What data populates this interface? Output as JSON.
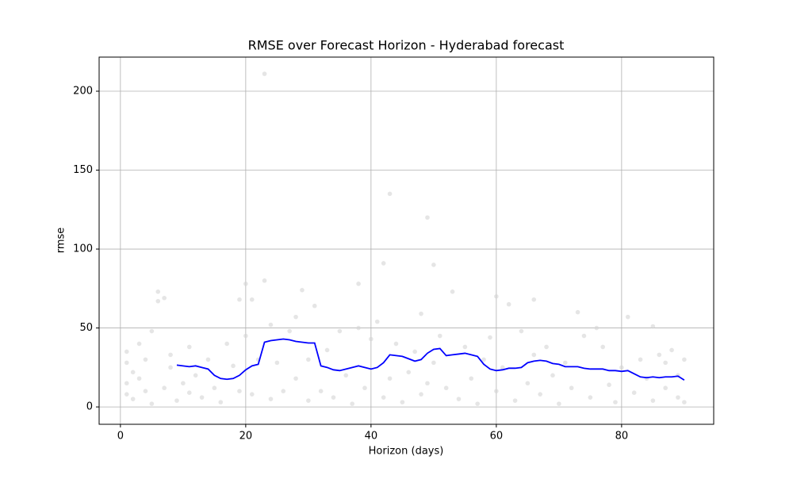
{
  "chart_data": {
    "type": "line",
    "title": "RMSE over Forecast Horizon - Hyderabad forecast",
    "x_label": "Horizon (days)",
    "y_label": "rmse",
    "xlim": [
      -3.4,
      94.7
    ],
    "ylim": [
      -11,
      221.6
    ],
    "xticks": [
      0,
      20,
      40,
      60,
      80
    ],
    "yticks": [
      0,
      50,
      100,
      150,
      200
    ],
    "grid": true,
    "series": [
      {
        "kind": "scatter",
        "color": "#d3d3d3",
        "x": [
          1,
          1,
          1,
          1,
          2,
          2,
          3,
          3,
          4,
          4,
          5,
          5,
          6,
          6,
          7,
          7,
          8,
          8,
          9,
          10,
          11,
          11,
          12,
          13,
          14,
          15,
          16,
          17,
          18,
          19,
          19,
          20,
          20,
          21,
          21,
          22,
          23,
          23,
          24,
          24,
          25,
          26,
          27,
          28,
          28,
          29,
          30,
          30,
          31,
          32,
          33,
          34,
          35,
          36,
          37,
          38,
          38,
          39,
          40,
          41,
          42,
          42,
          43,
          43,
          44,
          45,
          46,
          47,
          48,
          48,
          49,
          49,
          50,
          50,
          51,
          52,
          53,
          54,
          55,
          56,
          57,
          58,
          59,
          60,
          60,
          61,
          62,
          63,
          64,
          65,
          66,
          66,
          67,
          68,
          69,
          70,
          71,
          72,
          73,
          74,
          75,
          76,
          77,
          78,
          79,
          80,
          81,
          82,
          83,
          84,
          85,
          85,
          86,
          87,
          88,
          89,
          90,
          90,
          89,
          87
        ],
        "values": [
          35,
          28,
          15,
          8,
          5,
          22,
          40,
          18,
          30,
          10,
          48,
          2,
          73,
          67,
          69,
          12,
          25,
          33,
          4,
          15,
          38,
          9,
          20,
          6,
          30,
          12,
          3,
          40,
          26,
          68,
          10,
          78,
          45,
          68,
          8,
          30,
          211,
          80,
          52,
          5,
          28,
          10,
          48,
          57,
          18,
          74,
          4,
          30,
          64,
          10,
          36,
          6,
          48,
          20,
          2,
          78,
          50,
          12,
          43,
          54,
          91,
          6,
          135,
          18,
          40,
          3,
          22,
          35,
          59,
          8,
          120,
          15,
          90,
          28,
          45,
          12,
          73,
          5,
          38,
          18,
          2,
          30,
          44,
          70,
          10,
          25,
          65,
          4,
          48,
          15,
          68,
          33,
          8,
          38,
          20,
          2,
          28,
          12,
          60,
          45,
          6,
          50,
          38,
          14,
          3,
          25,
          57,
          9,
          30,
          18,
          51,
          4,
          33,
          12,
          36,
          6,
          30,
          3,
          20,
          28
        ]
      },
      {
        "kind": "line",
        "color": "#0000ff",
        "x": [
          9,
          10,
          11,
          12,
          13,
          14,
          15,
          16,
          17,
          18,
          19,
          20,
          21,
          22,
          23,
          24,
          25,
          26,
          27,
          28,
          29,
          30,
          31,
          32,
          33,
          34,
          35,
          36,
          37,
          38,
          39,
          40,
          41,
          42,
          43,
          44,
          45,
          46,
          47,
          48,
          49,
          50,
          51,
          52,
          53,
          54,
          55,
          56,
          57,
          58,
          59,
          60,
          61,
          62,
          63,
          64,
          65,
          66,
          67,
          68,
          69,
          70,
          71,
          72,
          73,
          74,
          75,
          76,
          77,
          78,
          79,
          80,
          81,
          82,
          83,
          84,
          85,
          86,
          87,
          88,
          89,
          90
        ],
        "values": [
          26.5,
          26,
          25.5,
          26,
          25,
          24,
          20,
          18,
          17.5,
          18,
          20,
          23.5,
          26,
          27,
          41,
          42,
          42.5,
          43,
          42.5,
          41.5,
          41,
          40.5,
          40.5,
          26,
          25,
          23.5,
          23,
          24,
          25,
          26,
          25,
          24,
          25,
          28,
          33,
          32.5,
          32,
          30.5,
          29,
          30,
          34,
          36.5,
          37,
          32.5,
          33,
          33.5,
          34,
          33,
          32,
          27,
          24,
          23,
          23.5,
          24.5,
          24.5,
          25,
          28,
          29,
          29.5,
          29,
          27.5,
          27,
          25.5,
          25.5,
          25.5,
          24.5,
          24,
          24,
          24,
          23,
          23,
          22.5,
          23,
          21,
          19,
          18.5,
          19,
          18.5,
          19,
          19,
          19.5,
          17
        ]
      }
    ]
  }
}
